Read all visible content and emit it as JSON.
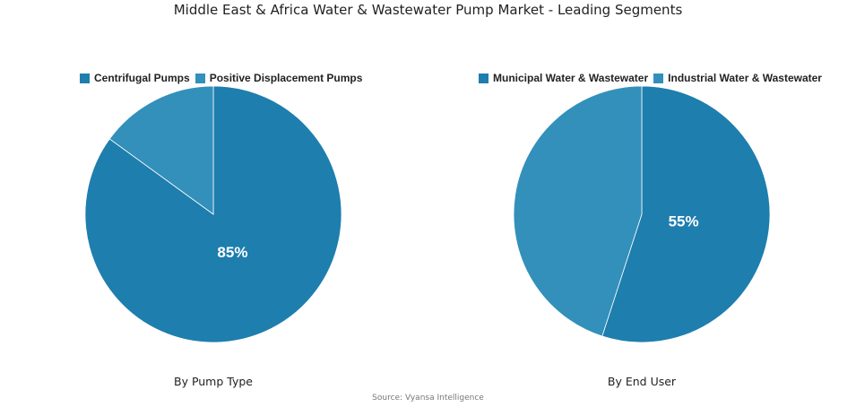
{
  "title": "Middle East & Africa Water & Wastewater Pump Market - Leading Segments",
  "source": "Source: Vyansa Intelligence",
  "chart_data": [
    {
      "type": "pie",
      "subtitle": "By Pump Type",
      "categories": [
        "Centrifugal Pumps",
        "Positive Displacement Pumps"
      ],
      "values": [
        85,
        15
      ],
      "labels": [
        "85%",
        ""
      ],
      "colors": [
        "#1e7eae",
        "#3290bb"
      ],
      "legend": "top"
    },
    {
      "type": "pie",
      "subtitle": "By End User",
      "categories": [
        "Municipal Water & Wastewater",
        "Industrial Water & Wastewater"
      ],
      "values": [
        55,
        45
      ],
      "labels": [
        "55%",
        ""
      ],
      "colors": [
        "#1e7eae",
        "#3290bb"
      ],
      "legend": "top"
    }
  ]
}
